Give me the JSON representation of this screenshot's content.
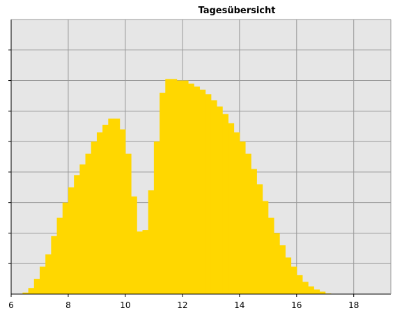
{
  "chart_data": {
    "type": "area",
    "title": "Tagesübersicht",
    "xlabel": "",
    "ylabel": "",
    "xlim": [
      6,
      19.3
    ],
    "ylim": [
      0,
      9
    ],
    "xticks": [
      6,
      8,
      10,
      12,
      14,
      16,
      18
    ],
    "xtick_labels": [
      "6",
      "8",
      "10",
      "12",
      "14",
      "16",
      "18"
    ],
    "yticks": [
      1,
      2,
      3,
      4,
      5,
      6,
      7,
      8
    ],
    "grid": true,
    "colors": {
      "fill": "#FFD700",
      "plot_bg": "#E6E6E6",
      "grid": "#999999"
    },
    "series": [
      {
        "x": [
          6.4,
          6.6,
          6.8,
          7.0,
          7.2,
          7.4,
          7.6,
          7.8,
          8.0,
          8.2,
          8.4,
          8.6,
          8.8,
          9.0,
          9.2,
          9.4,
          9.6,
          9.8,
          10.0,
          10.2,
          10.4,
          10.6,
          10.8,
          11.0,
          11.2,
          11.4,
          11.6,
          11.8,
          12.0,
          12.2,
          12.4,
          12.6,
          12.8,
          13.0,
          13.2,
          13.4,
          13.6,
          13.8,
          14.0,
          14.2,
          14.4,
          14.6,
          14.8,
          15.0,
          15.2,
          15.4,
          15.6,
          15.8,
          16.0,
          16.2,
          16.4,
          16.6,
          16.8,
          17.0,
          17.2,
          17.4,
          17.6,
          17.8,
          18.0,
          18.2,
          18.4,
          18.6
        ],
        "values": [
          0.05,
          0.2,
          0.5,
          0.9,
          1.3,
          1.9,
          2.5,
          3.0,
          3.5,
          3.9,
          4.25,
          4.6,
          5.0,
          5.3,
          5.55,
          5.75,
          5.75,
          5.4,
          4.6,
          3.2,
          2.05,
          2.1,
          3.4,
          5.0,
          6.6,
          7.05,
          7.05,
          7.0,
          7.0,
          6.9,
          6.8,
          6.7,
          6.55,
          6.35,
          6.15,
          5.9,
          5.6,
          5.3,
          5.0,
          4.6,
          4.1,
          3.6,
          3.05,
          2.5,
          2.0,
          1.6,
          1.2,
          0.9,
          0.62,
          0.4,
          0.25,
          0.15,
          0.08,
          0.02,
          0.0,
          0.0,
          0.0,
          0.0,
          0.0,
          0.0,
          0.0,
          0.0
        ]
      }
    ]
  }
}
